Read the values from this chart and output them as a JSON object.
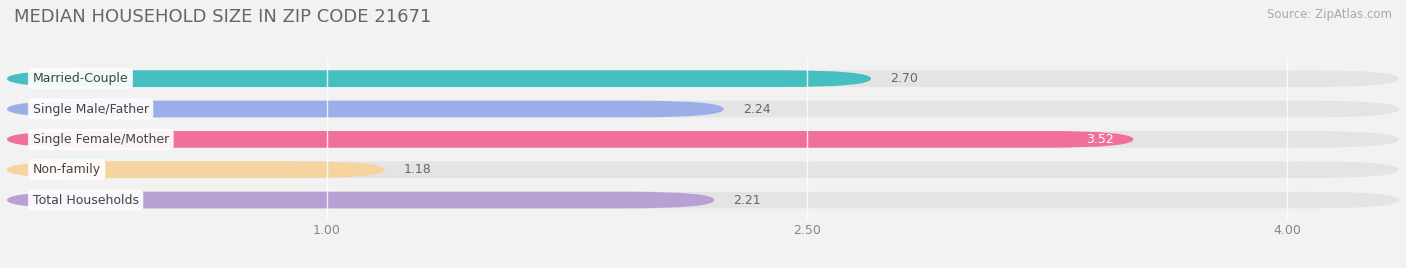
{
  "title": "MEDIAN HOUSEHOLD SIZE IN ZIP CODE 21671",
  "source": "Source: ZipAtlas.com",
  "categories": [
    "Married-Couple",
    "Single Male/Father",
    "Single Female/Mother",
    "Non-family",
    "Total Households"
  ],
  "values": [
    2.7,
    2.24,
    3.52,
    1.18,
    2.21
  ],
  "bar_colors": [
    "#45BFBF",
    "#9BAEE8",
    "#F07099",
    "#F5D4A0",
    "#B8A0D4"
  ],
  "dot_colors": [
    "#45BFBF",
    "#9BAEE8",
    "#F07099",
    "#F5D4A0",
    "#B8A0D4"
  ],
  "xmin": 0.0,
  "xmax": 4.35,
  "xlim_display": [
    0.0,
    4.35
  ],
  "xticks": [
    1.0,
    2.5,
    4.0
  ],
  "xtick_labels": [
    "1.00",
    "2.50",
    "4.00"
  ],
  "background_color": "#f2f2f2",
  "bar_bg_color": "#e4e4e4",
  "title_fontsize": 13,
  "label_fontsize": 9,
  "value_fontsize": 9,
  "source_fontsize": 8.5,
  "bar_height": 0.55,
  "bar_gap": 0.45
}
